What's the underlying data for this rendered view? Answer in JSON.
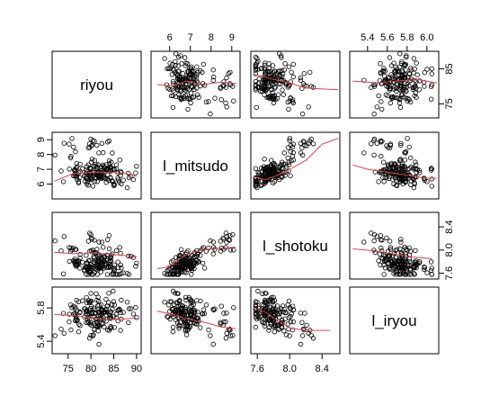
{
  "chart_data": {
    "type": "scatter",
    "kind": "scatterplot-matrix",
    "title": "",
    "point_style": "open-circle",
    "smoother_color": "#e0404a",
    "variables": [
      {
        "name": "riyou",
        "range": [
          71.5,
          91
        ],
        "ticks": [
          75,
          80,
          85,
          90
        ],
        "tick_labels": [
          "75",
          "80",
          "85",
          "90"
        ],
        "ylim": [
          71,
          90
        ],
        "yticks": [
          75,
          85
        ],
        "ytick_labels": [
          "75",
          "85"
        ]
      },
      {
        "name": "l_mitsudo",
        "range": [
          5.1,
          9.4
        ],
        "ticks": [
          6,
          7,
          8,
          9
        ],
        "tick_labels": [
          "6",
          "7",
          "8",
          "9"
        ],
        "ylim": [
          5.0,
          9.5
        ],
        "yticks": [
          6,
          7,
          8,
          9
        ],
        "ytick_labels": [
          "6",
          "7",
          "8",
          "9"
        ]
      },
      {
        "name": "l_shotoku",
        "range": [
          7.52,
          8.62
        ],
        "ticks": [
          7.6,
          8.0,
          8.4
        ],
        "tick_labels": [
          "7.6",
          "8.0",
          "8.4"
        ],
        "ylim": [
          7.5,
          8.65
        ],
        "yticks": [
          7.6,
          8.0,
          8.4
        ],
        "ytick_labels": [
          "7.6",
          "8.0",
          "8.4"
        ]
      },
      {
        "name": "l_iryou",
        "range": [
          5.22,
          6.12
        ],
        "ticks": [
          5.4,
          5.6,
          5.8,
          6.0
        ],
        "tick_labels": [
          "5.4",
          "5.6",
          "5.8",
          "6.0"
        ],
        "ylim": [
          5.25,
          6.05
        ],
        "yticks": [
          5.4,
          5.8
        ],
        "ytick_labels": [
          "5.4",
          "5.8"
        ]
      }
    ],
    "axes_layout": {
      "top_axis_columns": [
        1,
        3
      ],
      "bottom_axis_columns": [
        0,
        2
      ],
      "left_axis_rows": [
        1,
        3
      ],
      "right_axis_rows": [
        0,
        2
      ]
    },
    "n_points": 170,
    "smoother_series": [
      {
        "x_var": "l_mitsudo",
        "y_var": "riyou",
        "x": [
          5.4,
          6.2,
          6.8,
          7.5,
          8.5,
          9.2
        ],
        "y": [
          80.5,
          80.2,
          81.5,
          80.5,
          81.2,
          80.8
        ]
      },
      {
        "x_var": "l_shotoku",
        "y_var": "riyou",
        "x": [
          7.55,
          7.8,
          8.0,
          8.2,
          8.6
        ],
        "y": [
          83.5,
          82.0,
          81.0,
          79.5,
          79.0
        ]
      },
      {
        "x_var": "l_iryou",
        "y_var": "riyou",
        "x": [
          5.25,
          5.5,
          5.7,
          5.9,
          6.1
        ],
        "y": [
          81.5,
          81.0,
          81.5,
          82.0,
          81.0
        ]
      },
      {
        "x_var": "riyou",
        "y_var": "l_mitsudo",
        "x": [
          72,
          76,
          80,
          84,
          88,
          90
        ],
        "y": [
          6.2,
          6.7,
          6.8,
          6.8,
          6.7,
          6.5
        ]
      },
      {
        "x_var": "l_shotoku",
        "y_var": "l_mitsudo",
        "x": [
          7.55,
          7.7,
          7.85,
          8.0,
          8.2,
          8.4,
          8.6
        ],
        "y": [
          6.5,
          6.3,
          6.6,
          7.0,
          7.6,
          8.7,
          9.1
        ]
      },
      {
        "x_var": "l_iryou",
        "y_var": "l_mitsudo",
        "x": [
          5.25,
          5.4,
          5.6,
          5.8,
          6.0,
          6.1
        ],
        "y": [
          7.3,
          7.0,
          6.8,
          6.6,
          6.4,
          6.4
        ]
      },
      {
        "x_var": "riyou",
        "y_var": "l_shotoku",
        "x": [
          72,
          76,
          80,
          84,
          88,
          90
        ],
        "y": [
          7.96,
          7.94,
          7.95,
          7.93,
          7.9,
          7.88
        ]
      },
      {
        "x_var": "l_mitsudo",
        "y_var": "l_shotoku",
        "x": [
          5.4,
          5.8,
          6.3,
          6.8,
          7.3,
          8.0,
          9.2
        ],
        "y": [
          7.68,
          7.7,
          7.8,
          7.92,
          7.98,
          8.02,
          8.05
        ]
      },
      {
        "x_var": "l_iryou",
        "y_var": "l_shotoku",
        "x": [
          5.25,
          5.45,
          5.65,
          5.85,
          6.05
        ],
        "y": [
          8.02,
          7.99,
          7.94,
          7.88,
          7.85
        ]
      },
      {
        "x_var": "riyou",
        "y_var": "l_iryou",
        "x": [
          72,
          76,
          80,
          84,
          88,
          90
        ],
        "y": [
          5.72,
          5.71,
          5.68,
          5.66,
          5.67,
          5.68
        ]
      },
      {
        "x_var": "l_mitsudo",
        "y_var": "l_iryou",
        "x": [
          5.4,
          6.2,
          7.0,
          7.8,
          8.5,
          9.2
        ],
        "y": [
          5.76,
          5.72,
          5.66,
          5.62,
          5.57,
          5.55
        ]
      },
      {
        "x_var": "l_shotoku",
        "y_var": "l_iryou",
        "x": [
          7.55,
          7.7,
          7.85,
          8.0,
          8.2,
          8.5
        ],
        "y": [
          5.8,
          5.75,
          5.65,
          5.56,
          5.53,
          5.53
        ]
      }
    ]
  }
}
